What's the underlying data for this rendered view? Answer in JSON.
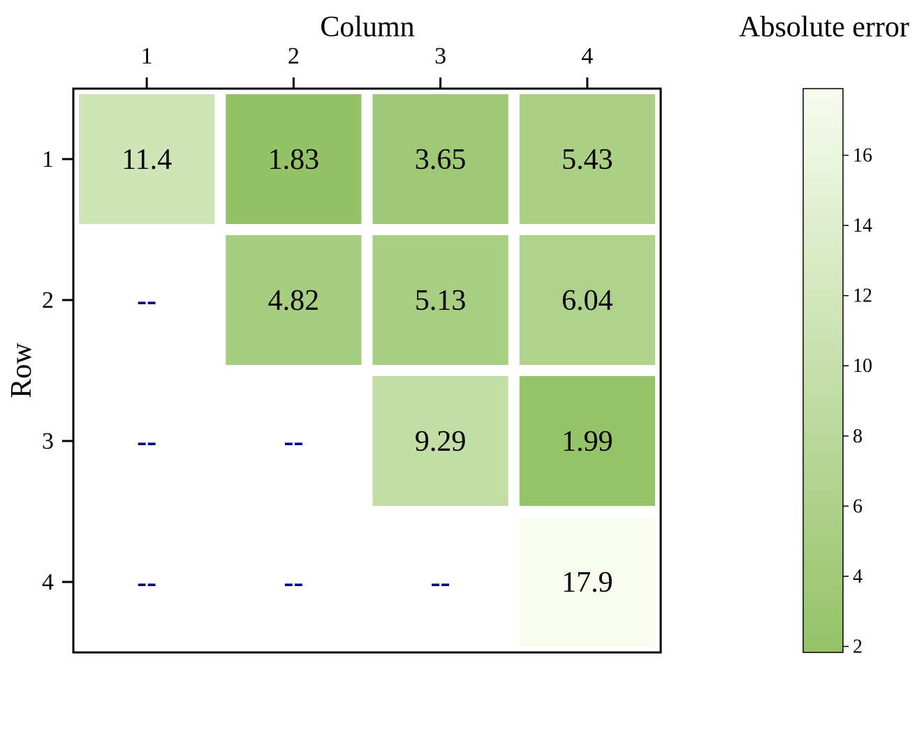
{
  "chart_data": {
    "type": "heatmap",
    "xlabel": "Column",
    "ylabel": "Row",
    "colorbar_title": "Absolute error",
    "columns": [
      "1",
      "2",
      "3",
      "4"
    ],
    "rows": [
      "1",
      "2",
      "3",
      "4"
    ],
    "values": [
      [
        11.4,
        1.83,
        3.65,
        5.43
      ],
      [
        null,
        4.82,
        5.13,
        6.04
      ],
      [
        null,
        null,
        9.29,
        1.99
      ],
      [
        null,
        null,
        null,
        17.9
      ]
    ],
    "labels": [
      [
        "11.4",
        "1.83",
        "3.65",
        "5.43"
      ],
      [
        "--",
        "4.82",
        "5.13",
        "6.04"
      ],
      [
        "--",
        "--",
        "9.29",
        "1.99"
      ],
      [
        "--",
        "--",
        "--",
        "17.9"
      ]
    ],
    "missing_label": "--",
    "color_range": [
      1.83,
      17.9
    ],
    "colorbar_ticks": [
      "2",
      "4",
      "6",
      "8",
      "10",
      "12",
      "14",
      "16"
    ],
    "colormap": {
      "low": "#94c267",
      "high": "#f7fcef"
    },
    "missing_color": "#00008b",
    "x_axis_position": "top",
    "grid": false,
    "legend": "colorbar-right"
  }
}
